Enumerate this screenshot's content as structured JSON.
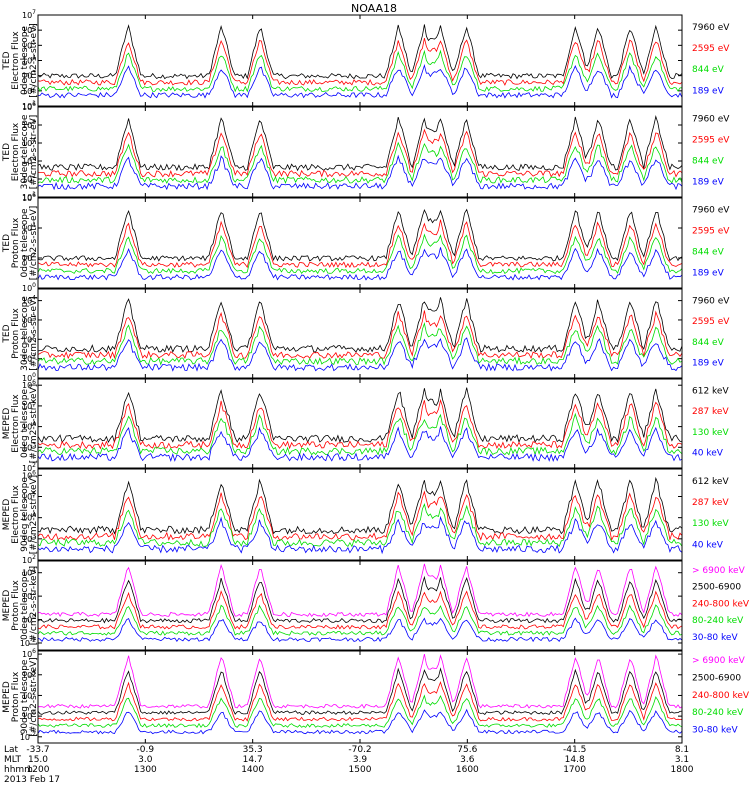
{
  "title": "NOAA18",
  "colors": {
    "black": "#000000",
    "red": "#ff0000",
    "green": "#00dd00",
    "blue": "#0000ff",
    "magenta": "#ff00ff"
  },
  "chart_data": {
    "type": "line",
    "title": "NOAA18",
    "panels": [
      {
        "ylabel": [
          "TED",
          "Electron Flux",
          "0deg telescope",
          "[#/cm2-s-str-eV]"
        ],
        "yticks": [
          {
            "base": "10",
            "exp": "1"
          },
          {
            "base": "10",
            "exp": "2"
          },
          {
            "base": "10",
            "exp": "3"
          },
          {
            "base": "10",
            "exp": "4"
          },
          {
            "base": "10",
            "exp": "5"
          },
          {
            "base": "10",
            "exp": "6"
          },
          {
            "base": "10",
            "exp": "7"
          }
        ],
        "yrange_exp": [
          1,
          7
        ],
        "legend": [
          {
            "label": "7960 eV",
            "color": "black"
          },
          {
            "label": "2595 eV",
            "color": "red"
          },
          {
            "label": "844 eV",
            "color": "green"
          },
          {
            "label": "189 eV",
            "color": "blue"
          }
        ]
      },
      {
        "ylabel": [
          "TED",
          "Electron Flux",
          "30deg telescope",
          "[#/cm2-s-str-eV]"
        ],
        "yticks": [
          {
            "base": "10",
            "exp": "1"
          },
          {
            "base": "10",
            "exp": "2"
          },
          {
            "base": "10",
            "exp": "3"
          },
          {
            "base": "10",
            "exp": "4"
          },
          {
            "base": "10",
            "exp": "5"
          },
          {
            "base": "10",
            "exp": "6"
          }
        ],
        "yrange_exp": [
          1,
          6
        ],
        "legend": [
          {
            "label": "7960 eV",
            "color": "black"
          },
          {
            "label": "2595 eV",
            "color": "red"
          },
          {
            "label": "844 eV",
            "color": "green"
          },
          {
            "label": "189 eV",
            "color": "blue"
          }
        ]
      },
      {
        "ylabel": [
          "TED",
          "Proton Flux",
          "0deg telescope",
          "[#/cm2-s-str-eV]"
        ],
        "yticks": [
          {
            "base": "10",
            "exp": "0"
          },
          {
            "base": "10",
            "exp": "2"
          },
          {
            "base": "10",
            "exp": "4"
          },
          {
            "base": "10",
            "exp": "6"
          }
        ],
        "yrange_exp": [
          0,
          6
        ],
        "legend": [
          {
            "label": "7960 eV",
            "color": "black"
          },
          {
            "label": "2595 eV",
            "color": "red"
          },
          {
            "label": "844 eV",
            "color": "green"
          },
          {
            "label": "189 eV",
            "color": "blue"
          }
        ]
      },
      {
        "ylabel": [
          "TED",
          "Proton Flux",
          "30deg telescope",
          "[#/cm2-s-str-eV]"
        ],
        "yticks": [
          {
            "base": "10",
            "exp": "0"
          },
          {
            "base": "10",
            "exp": "1"
          },
          {
            "base": "10",
            "exp": "2"
          },
          {
            "base": "10",
            "exp": "3"
          },
          {
            "base": "10",
            "exp": "4"
          }
        ],
        "yrange_exp": [
          0,
          4.6
        ],
        "legend": [
          {
            "label": "7960 eV",
            "color": "black"
          },
          {
            "label": "2595 eV",
            "color": "red"
          },
          {
            "label": "844 eV",
            "color": "green"
          },
          {
            "label": "189 eV",
            "color": "blue"
          }
        ]
      },
      {
        "ylabel": [
          "MEPED",
          "Electron Flux",
          "0deg telescope",
          "[#/cm2-s-str-keV]"
        ],
        "yticks": [
          {
            "base": "10",
            "exp": "2"
          },
          {
            "base": "10",
            "exp": "3"
          },
          {
            "base": "10",
            "exp": "4"
          },
          {
            "base": "10",
            "exp": "5"
          },
          {
            "base": "10",
            "exp": "6"
          }
        ],
        "yrange_exp": [
          2,
          6.3
        ],
        "legend": [
          {
            "label": "612 keV",
            "color": "black"
          },
          {
            "label": "287 keV",
            "color": "red"
          },
          {
            "label": "130 keV",
            "color": "green"
          },
          {
            "label": "40 keV",
            "color": "blue"
          }
        ]
      },
      {
        "ylabel": [
          "MEPED",
          "Electron Flux",
          "90deg telescope",
          "[#/cm2-s-str-keV]"
        ],
        "yticks": [
          {
            "base": "10",
            "exp": "2"
          },
          {
            "base": "10",
            "exp": "3"
          },
          {
            "base": "10",
            "exp": "4"
          },
          {
            "base": "10",
            "exp": "5"
          },
          {
            "base": "10",
            "exp": "6"
          }
        ],
        "yrange_exp": [
          2,
          6.3
        ],
        "legend": [
          {
            "label": "612 keV",
            "color": "black"
          },
          {
            "label": "287 keV",
            "color": "red"
          },
          {
            "label": "130 keV",
            "color": "green"
          },
          {
            "label": "40 keV",
            "color": "blue"
          }
        ]
      },
      {
        "ylabel": [
          "MEPED",
          "Proton Flux",
          "0deg telescope",
          "[#/cm2-s-str-keV]"
        ],
        "yticks": [
          {
            "base": "10",
            "exp": "-2"
          },
          {
            "base": "10",
            "exp": "0"
          },
          {
            "base": "10",
            "exp": "2"
          },
          {
            "base": "10",
            "exp": "4"
          }
        ],
        "yrange_exp": [
          -2.6,
          5
        ],
        "legend": [
          {
            "label": "> 6900 keV",
            "color": "magenta"
          },
          {
            "label": "2500-6900",
            "color": "black"
          },
          {
            "label": "240-800 keV",
            "color": "red"
          },
          {
            "label": "80-240 keV",
            "color": "green"
          },
          {
            "label": "30-80 keV",
            "color": "blue"
          }
        ]
      },
      {
        "ylabel": [
          "MEPED",
          "Proton Flux",
          "90deg telescope",
          "[#/cm2-s-str-keV]"
        ],
        "yticks": [
          {
            "base": "10",
            "exp": "-2"
          },
          {
            "base": "10",
            "exp": "0"
          },
          {
            "base": "10",
            "exp": "2"
          },
          {
            "base": "10",
            "exp": "4"
          },
          {
            "base": "10",
            "exp": "6"
          }
        ],
        "yrange_exp": [
          -2.6,
          6.3
        ],
        "legend": [
          {
            "label": "> 6900 keV",
            "color": "magenta"
          },
          {
            "label": "2500-6900",
            "color": "black"
          },
          {
            "label": "240-800 keV",
            "color": "red"
          },
          {
            "label": "80-240 keV",
            "color": "green"
          },
          {
            "label": "30-80 keV",
            "color": "blue"
          }
        ]
      }
    ],
    "x_axis": {
      "range_hhmm": [
        "1200",
        "1800"
      ],
      "ticks": [
        {
          "lat": "-33.7",
          "mlt": "15.0",
          "hhmm": "1200"
        },
        {
          "lat": "-0.9",
          "mlt": "3.0",
          "hhmm": "1300"
        },
        {
          "lat": "35.3",
          "mlt": "14.7",
          "hhmm": "1400"
        },
        {
          "lat": "-70.2",
          "mlt": "3.9",
          "hhmm": "1500"
        },
        {
          "lat": "75.6",
          "mlt": "3.6",
          "hhmm": "1600"
        },
        {
          "lat": "-41.5",
          "mlt": "14.8",
          "hhmm": "1700"
        },
        {
          "lat": "8.1",
          "mlt": "3.1",
          "hhmm": "1800"
        }
      ],
      "row_labels": [
        "Lat",
        "MLT",
        "hhmm"
      ],
      "date": "2013 Feb 17"
    }
  }
}
